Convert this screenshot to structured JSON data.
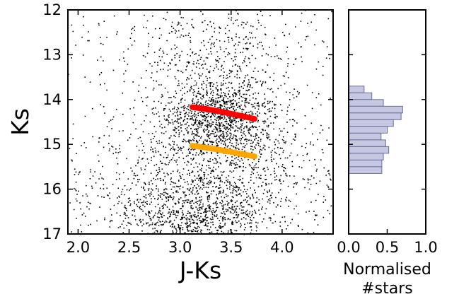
{
  "chart_data": [
    {
      "type": "scatter",
      "title": "",
      "xlabel": "J-Ks",
      "ylabel": "Ks",
      "xlim": [
        1.9,
        4.5
      ],
      "ylim": [
        17,
        12
      ],
      "y_inverted": true,
      "xticks": [
        "2.0",
        "2.5",
        "3.0",
        "3.5",
        "4.0"
      ],
      "yticks": [
        "12",
        "13",
        "14",
        "15",
        "16",
        "17"
      ],
      "grid": false,
      "legend": "none",
      "colors": {
        "points": "#000000",
        "upper_sequence": "#ff0000",
        "lower_sequence": "#ffa500"
      },
      "series": [
        {
          "values_description": "dense field of stars",
          "density_clumps": [
            {
              "x": 3.35,
              "y": 14.4,
              "spread_x": 0.28,
              "spread_y": 0.45,
              "weight": 0.32
            },
            {
              "x": 3.15,
              "y": 16.6,
              "spread_x": 0.35,
              "spread_y": 0.55,
              "weight": 0.3
            },
            {
              "x": 3.3,
              "y": 13.0,
              "spread_x": 0.4,
              "spread_y": 0.6,
              "weight": 0.12
            },
            {
              "x": 3.6,
              "y": 15.4,
              "spread_x": 0.5,
              "spread_y": 0.7,
              "weight": 0.16
            },
            {
              "x": 2.8,
              "y": 16.0,
              "spread_x": 0.6,
              "spread_y": 0.7,
              "weight": 0.1
            }
          ]
        },
        {
          "line_points": [
            [
              3.12,
              14.17
            ],
            [
              3.25,
              14.21
            ],
            [
              3.4,
              14.27
            ],
            [
              3.55,
              14.34
            ],
            [
              3.73,
              14.43
            ]
          ]
        },
        {
          "line_points": [
            [
              3.12,
              15.03
            ],
            [
              3.3,
              15.09
            ],
            [
              3.5,
              15.17
            ],
            [
              3.73,
              15.27
            ]
          ]
        }
      ]
    },
    {
      "type": "bar",
      "orientation": "horizontal",
      "xlabel": [
        "Normalised",
        "#stars"
      ],
      "ylabel": "",
      "xlim": [
        0,
        1
      ],
      "ylim": [
        17,
        12
      ],
      "xticks": [
        "0.0",
        "0.5",
        "1.0"
      ],
      "colors": {
        "fill": "#c5c8e0",
        "edge": "#6a6f9a"
      },
      "bins": [
        {
          "y_top": 13.7,
          "y_bottom": 13.85,
          "value": 0.2
        },
        {
          "y_top": 13.85,
          "y_bottom": 14.0,
          "value": 0.3
        },
        {
          "y_top": 14.0,
          "y_bottom": 14.15,
          "value": 0.45
        },
        {
          "y_top": 14.15,
          "y_bottom": 14.3,
          "value": 0.7
        },
        {
          "y_top": 14.3,
          "y_bottom": 14.45,
          "value": 0.68
        },
        {
          "y_top": 14.45,
          "y_bottom": 14.6,
          "value": 0.58
        },
        {
          "y_top": 14.6,
          "y_bottom": 14.75,
          "value": 0.5
        },
        {
          "y_top": 14.75,
          "y_bottom": 14.9,
          "value": 0.42
        },
        {
          "y_top": 14.9,
          "y_bottom": 15.05,
          "value": 0.48
        },
        {
          "y_top": 15.05,
          "y_bottom": 15.2,
          "value": 0.52
        },
        {
          "y_top": 15.2,
          "y_bottom": 15.35,
          "value": 0.45
        },
        {
          "y_top": 15.35,
          "y_bottom": 15.5,
          "value": 0.43
        },
        {
          "y_top": 15.5,
          "y_bottom": 15.65,
          "value": 0.43
        }
      ]
    }
  ]
}
